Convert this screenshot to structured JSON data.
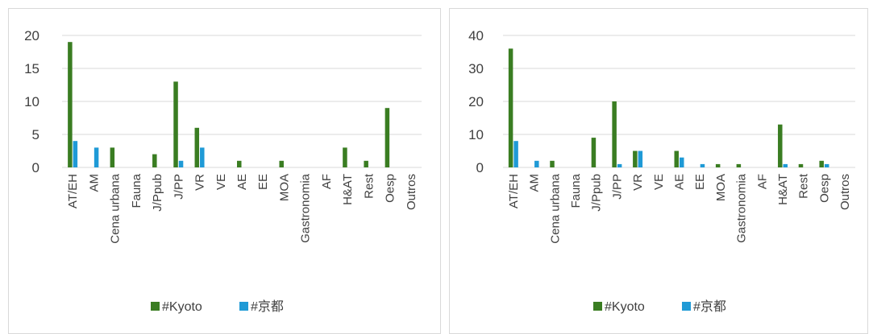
{
  "chart_data": [
    {
      "type": "bar",
      "categories": [
        "AT/EH",
        "AM",
        "Cena urbana",
        "Fauna",
        "J/Ppub",
        "J/PP",
        "VR",
        "VE",
        "AE",
        "EE",
        "MOA",
        "Gastronomia",
        "AF",
        "H&AT",
        "Rest",
        "Oesp",
        "Outros"
      ],
      "series": [
        {
          "name": "#Kyoto",
          "color": "#3a7d22",
          "values": [
            19,
            0,
            3,
            0,
            2,
            13,
            6,
            0,
            1,
            0,
            1,
            0,
            0,
            3,
            1,
            9,
            0
          ]
        },
        {
          "name": "#京都",
          "color": "#1f9ad6",
          "values": [
            4,
            3,
            0,
            0,
            0,
            1,
            3,
            0,
            0,
            0,
            0,
            0,
            0,
            0,
            0,
            0,
            0
          ]
        }
      ],
      "yticks": [
        "0",
        "5",
        "10",
        "15",
        "20"
      ],
      "ylim": [
        0,
        20
      ],
      "grid": true,
      "legend_position": "bottom"
    },
    {
      "type": "bar",
      "categories": [
        "AT/EH",
        "AM",
        "Cena urbana",
        "Fauna",
        "J/Ppub",
        "J/PP",
        "VR",
        "VE",
        "AE",
        "EE",
        "MOA",
        "Gastronomia",
        "AF",
        "H&AT",
        "Rest",
        "Oesp",
        "Outros"
      ],
      "series": [
        {
          "name": "#Kyoto",
          "color": "#3a7d22",
          "values": [
            36,
            0,
            2,
            0,
            9,
            20,
            5,
            0,
            5,
            0,
            1,
            1,
            0,
            13,
            1,
            2,
            0
          ]
        },
        {
          "name": "#京都",
          "color": "#1f9ad6",
          "values": [
            8,
            2,
            0,
            0,
            0,
            1,
            5,
            0,
            3,
            1,
            0,
            0,
            0,
            1,
            0,
            1,
            0
          ]
        }
      ],
      "yticks": [
        "0",
        "10",
        "20",
        "30",
        "40"
      ],
      "ylim": [
        0,
        40
      ],
      "grid": true,
      "legend_position": "bottom"
    }
  ]
}
